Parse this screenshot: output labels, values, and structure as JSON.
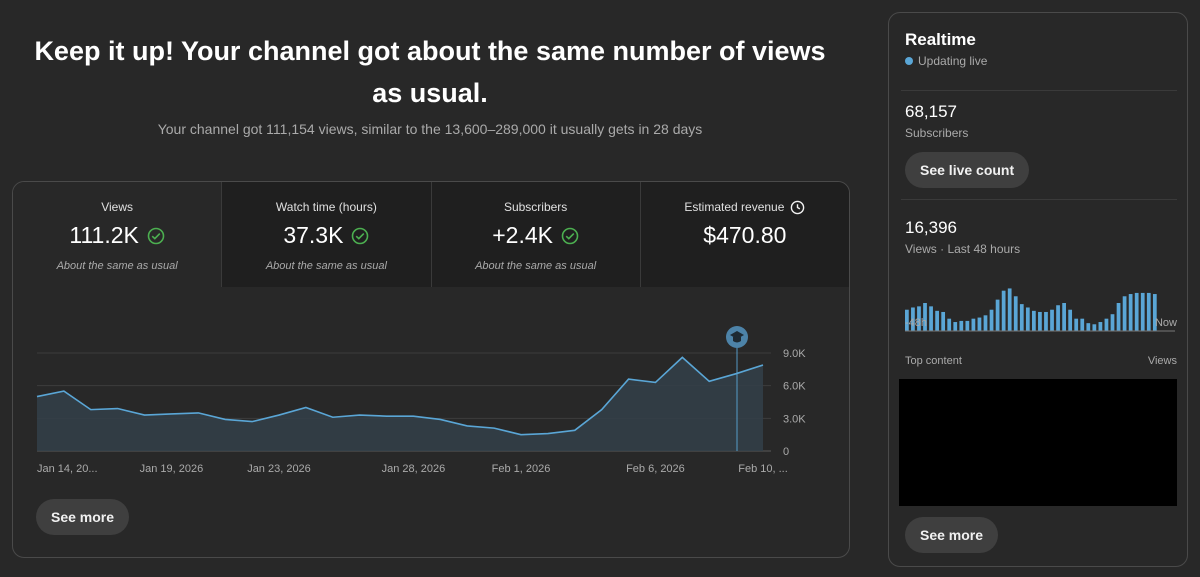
{
  "headline": "Keep it up! Your channel got about the same number of views as usual.",
  "subline": "Your channel got 111,154 views, similar to the 13,600–289,000 it usually gets in 28 days",
  "metrics": [
    {
      "label": "Views",
      "value": "111.2K",
      "note": "About the same as usual",
      "icon": "check-circle-icon"
    },
    {
      "label": "Watch time (hours)",
      "value": "37.3K",
      "note": "About the same as usual",
      "icon": "check-circle-icon"
    },
    {
      "label": "Subscribers",
      "value": "+2.4K",
      "note": "About the same as usual",
      "icon": "check-circle-icon"
    },
    {
      "label": "Estimated revenue",
      "value": "$470.80",
      "note": "",
      "icon": "clock-icon"
    }
  ],
  "colors": {
    "accent": "#5aa6d6",
    "check": "#4caf50",
    "background": "#282828"
  },
  "chart_data": {
    "type": "area",
    "x": [
      "Jan 14",
      "Jan 15",
      "Jan 16",
      "Jan 17",
      "Jan 18",
      "Jan 19",
      "Jan 20",
      "Jan 21",
      "Jan 22",
      "Jan 23",
      "Jan 24",
      "Jan 25",
      "Jan 26",
      "Jan 27",
      "Jan 28",
      "Jan 29",
      "Jan 30",
      "Jan 31",
      "Feb 1",
      "Feb 2",
      "Feb 3",
      "Feb 4",
      "Feb 5",
      "Feb 6",
      "Feb 7",
      "Feb 8",
      "Feb 9",
      "Feb 10"
    ],
    "values": [
      5000,
      5500,
      3800,
      3900,
      3300,
      3400,
      3500,
      2900,
      2700,
      3300,
      4000,
      3100,
      3300,
      3200,
      3200,
      2900,
      2300,
      2100,
      1500,
      1600,
      1900,
      3800,
      6600,
      6300,
      8600,
      6400,
      7100,
      7900
    ],
    "x_tick_labels": [
      "Jan 14, 20...",
      "Jan 19, 2026",
      "Jan 23, 2026",
      "Jan 28, 2026",
      "Feb 1, 2026",
      "Feb 6, 2026",
      "Feb 10, ..."
    ],
    "y_tick_labels": [
      "9.0K",
      "6.0K",
      "3.0K",
      "0"
    ],
    "y_ticks": [
      9000,
      6000,
      3000,
      0
    ],
    "ylim": [
      0,
      9000
    ],
    "grid": true,
    "marker": "graduation-cap-icon"
  },
  "main_see_more": "See more",
  "realtime": {
    "title": "Realtime",
    "live_label": "Updating live",
    "subscribers_value": "68,157",
    "subscribers_label": "Subscribers",
    "live_count_button": "See live count",
    "views_value": "16,396",
    "views_label": "Views · Last 48 hours",
    "axis_start": "-48h",
    "axis_end": "Now",
    "top_content_label": "Top content",
    "views_col_label": "Views",
    "see_more": "See more",
    "bars": [
      0.38,
      0.42,
      0.44,
      0.5,
      0.44,
      0.36,
      0.34,
      0.22,
      0.16,
      0.18,
      0.18,
      0.22,
      0.24,
      0.28,
      0.38,
      0.56,
      0.72,
      0.76,
      0.62,
      0.48,
      0.42,
      0.36,
      0.34,
      0.34,
      0.38,
      0.46,
      0.5,
      0.38,
      0.22,
      0.22,
      0.14,
      0.12,
      0.16,
      0.22,
      0.3,
      0.5,
      0.62,
      0.66,
      0.68,
      0.68,
      0.68,
      0.66
    ]
  }
}
